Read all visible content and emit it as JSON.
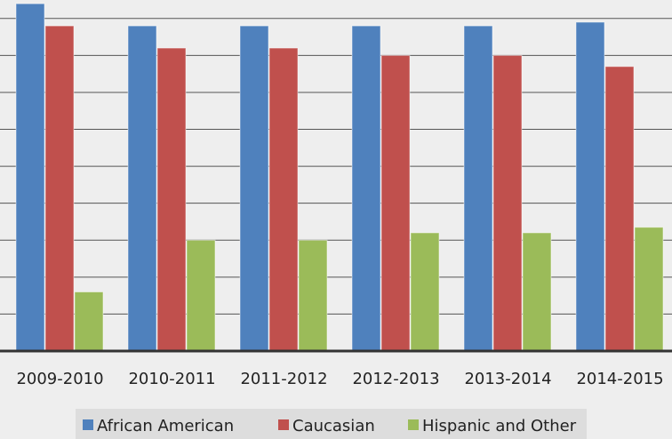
{
  "colors": {
    "background": "#eeeeee",
    "legend_background": "#dddddd",
    "gridline": "#555555",
    "axis_line": "#333333",
    "text": "#222222"
  },
  "chart_data": {
    "type": "bar",
    "title": "",
    "xlabel": "",
    "ylabel": "",
    "ylim": [
      0,
      9.5
    ],
    "grid": true,
    "legend_position": "bottom",
    "categories": [
      "2009-2010",
      "2010-2011",
      "2011-2012",
      "2012-2013",
      "2013-2014",
      "2014-2015"
    ],
    "series": [
      {
        "name": "African American",
        "color": "#4f81bd",
        "values": [
          9.4,
          8.8,
          8.8,
          8.8,
          8.8,
          8.9
        ]
      },
      {
        "name": "Caucasian",
        "color": "#c0504d",
        "values": [
          8.8,
          8.2,
          8.2,
          8.0,
          8.0,
          7.7
        ]
      },
      {
        "name": "Hispanic and Other",
        "color": "#9bbb59",
        "values": [
          1.6,
          3.0,
          3.0,
          3.2,
          3.2,
          3.35
        ]
      }
    ]
  }
}
